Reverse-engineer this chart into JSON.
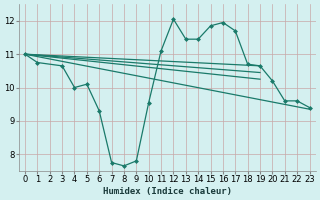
{
  "background_color": "#d4f0f0",
  "grid_color": "#c8a8a8",
  "line_color": "#1a7a6a",
  "xlabel": "Humidex (Indice chaleur)",
  "xlim": [
    -0.5,
    23.5
  ],
  "ylim": [
    7.5,
    12.5
  ],
  "yticks": [
    8,
    9,
    10,
    11,
    12
  ],
  "xticks": [
    0,
    1,
    2,
    3,
    4,
    5,
    6,
    7,
    8,
    9,
    10,
    11,
    12,
    13,
    14,
    15,
    16,
    17,
    18,
    19,
    20,
    21,
    22,
    23
  ],
  "series": [
    {
      "x": [
        0,
        1,
        3,
        4,
        5,
        6,
        7,
        8,
        9,
        10,
        11,
        12,
        13,
        14,
        15,
        16,
        17,
        18,
        19,
        20,
        21,
        22,
        23
      ],
      "y": [
        11.0,
        10.75,
        10.65,
        10.0,
        10.1,
        9.3,
        7.75,
        7.65,
        7.8,
        9.55,
        11.1,
        12.05,
        11.45,
        11.45,
        11.85,
        11.95,
        11.7,
        10.7,
        10.65,
        10.2,
        9.6,
        9.6,
        9.4
      ],
      "has_markers": true
    },
    {
      "x": [
        0,
        19
      ],
      "y": [
        11.0,
        10.65
      ],
      "has_markers": false
    },
    {
      "x": [
        0,
        19
      ],
      "y": [
        11.0,
        10.45
      ],
      "has_markers": false
    },
    {
      "x": [
        0,
        19
      ],
      "y": [
        11.0,
        10.25
      ],
      "has_markers": false
    },
    {
      "x": [
        0,
        23
      ],
      "y": [
        11.0,
        9.35
      ],
      "has_markers": false
    }
  ],
  "xlabel_fontsize": 6.5,
  "tick_labelsize": 6,
  "linewidth": 0.9,
  "markersize": 2.5,
  "figwidth": 3.2,
  "figheight": 2.0,
  "dpi": 100
}
